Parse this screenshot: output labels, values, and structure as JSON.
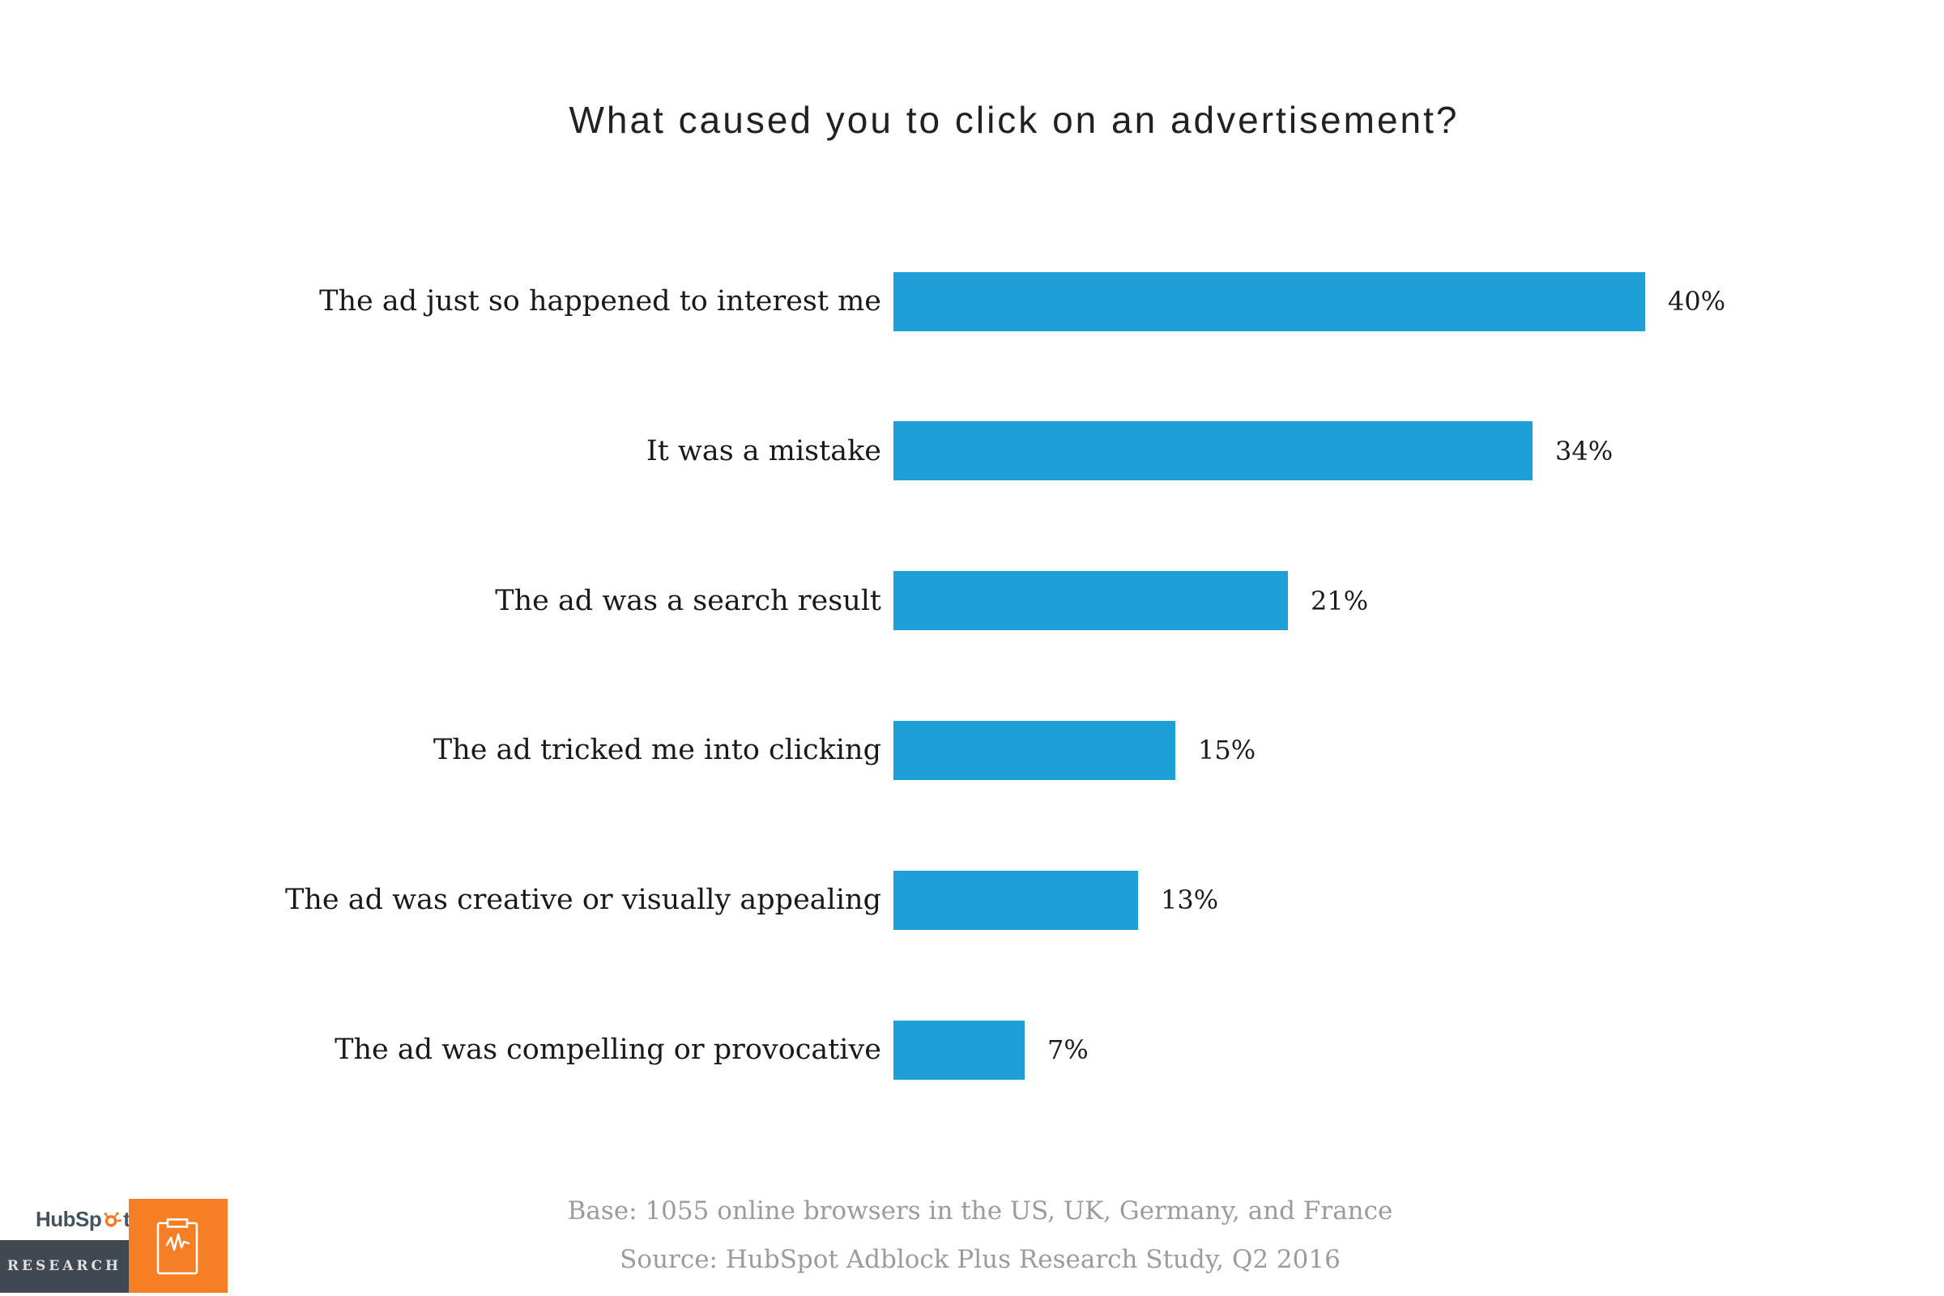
{
  "page": {
    "background": "#ffffff"
  },
  "title": {
    "text": "What caused you to click on an advertisement?",
    "color": "#212121"
  },
  "chart_data": {
    "type": "bar",
    "orientation": "horizontal",
    "title": "What caused you to click on an advertisement?",
    "categories": [
      "The ad just so happened to interest me",
      "It was a mistake",
      "The ad was a search result",
      "The ad tricked me into clicking",
      "The ad was creative or visually appealing",
      "The ad was compelling or provocative"
    ],
    "values": [
      40,
      34,
      21,
      15,
      13,
      7
    ],
    "value_labels": [
      "40%",
      "34%",
      "21%",
      "15%",
      "13%",
      "7%"
    ],
    "unit": "%",
    "axis_max": 40,
    "bar_color": "#1E9FD8",
    "label_color": "#191919",
    "gridlines": false,
    "axes_visible": false,
    "value_label_position": "right-of-bar"
  },
  "footer": {
    "base_note": "Base: 1055 online browsers in the US, UK, Germany, and France",
    "source_note": "Source: HubSpot Adblock Plus Research Study, Q2 2016",
    "text_color": "#9b9b9b"
  },
  "branding": {
    "wordmark_full": "HubSpot",
    "wordmark_prefix": "HubSp",
    "wordmark_suffix": "t",
    "wordmark_color": "#45535e",
    "research_label": "RESEARCH",
    "research_box_color": "#414950",
    "research_text_color": "#e0e0e0",
    "tile_color": "#F57E27",
    "sprocket_color": "#F8761F",
    "icons": {
      "sprocket": "hubspot-sprocket-icon",
      "tile": "clipboard-pulse-icon"
    }
  }
}
